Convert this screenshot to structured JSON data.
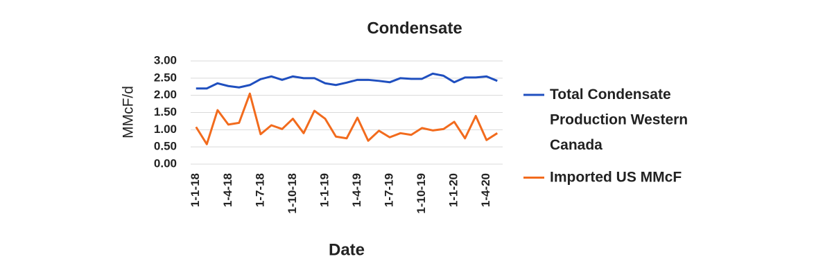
{
  "chart_data": {
    "type": "line",
    "title": "Condensate",
    "x_label": "Date",
    "y_label": "MMcF/d",
    "categories": [
      "1-1-18",
      null,
      null,
      "1-4-18",
      null,
      null,
      "1-7-18",
      null,
      null,
      "1-10-18",
      null,
      null,
      "1-1-19",
      null,
      null,
      "1-4-19",
      null,
      null,
      "1-7-19",
      null,
      null,
      "1-10-19",
      null,
      null,
      "1-1-20",
      null,
      null,
      "1-4-20",
      null
    ],
    "series": [
      {
        "name": "Total Condensate Production Western Canada",
        "color": "#1f4fbf",
        "values": [
          2.2,
          2.2,
          2.35,
          2.27,
          2.23,
          2.3,
          2.47,
          2.55,
          2.45,
          2.55,
          2.5,
          2.5,
          2.35,
          2.3,
          2.37,
          2.45,
          2.45,
          2.42,
          2.38,
          2.5,
          2.48,
          2.48,
          2.63,
          2.57,
          2.38,
          2.52,
          2.52,
          2.55,
          2.42
        ]
      },
      {
        "name": "Imported US MMcF",
        "color": "#f26b1d",
        "values": [
          1.08,
          0.58,
          1.57,
          1.15,
          1.2,
          2.05,
          0.87,
          1.13,
          1.02,
          1.32,
          0.9,
          1.55,
          1.32,
          0.8,
          0.75,
          1.35,
          0.68,
          0.97,
          0.78,
          0.9,
          0.85,
          1.05,
          0.98,
          1.02,
          1.23,
          0.75,
          1.4,
          0.7,
          0.9
        ]
      }
    ],
    "ylim": [
      0,
      3
    ],
    "yticks": [
      {
        "value": 0,
        "label": "0.00"
      },
      {
        "value": 0.5,
        "label": "0.50"
      },
      {
        "value": 1,
        "label": "1.00"
      },
      {
        "value": 1.5,
        "label": "1.50"
      },
      {
        "value": 2,
        "label": "2.00"
      },
      {
        "value": 2.5,
        "label": "2.50"
      },
      {
        "value": 3,
        "label": "3.00"
      }
    ],
    "grid": true,
    "legend": "right"
  }
}
